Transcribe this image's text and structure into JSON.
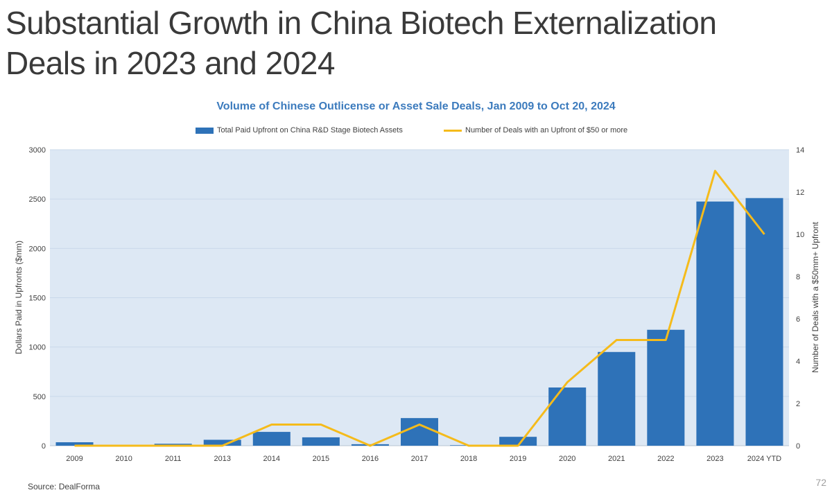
{
  "slide": {
    "title": "Substantial Growth in China Biotech Externalization Deals in 2023 and 2024",
    "source": "Source: DealForma",
    "page_number": "72"
  },
  "colors": {
    "bar": "#2e72b8",
    "line": "#f5bb1b",
    "plot_background": "#dde8f4",
    "title": "#3c7bbd"
  },
  "chart_data": {
    "type": "bar",
    "title": "Volume of Chinese  Outlicense or Asset Sale Deals, Jan 2009 to Oct 20, 2024",
    "categories": [
      "2009",
      "2010",
      "2011",
      "2013",
      "2014",
      "2015",
      "2016",
      "2017",
      "2018",
      "2019",
      "2020",
      "2021",
      "2022",
      "2023",
      "2024 YTD"
    ],
    "series": [
      {
        "name": "Total Paid Upfront on China R&D Stage Biotech Assets",
        "type": "bar",
        "axis": "left",
        "values": [
          35,
          0,
          20,
          60,
          140,
          85,
          15,
          280,
          5,
          90,
          590,
          950,
          1175,
          2475,
          2510
        ]
      },
      {
        "name": "Number of Deals with an Upfront of $50 or more",
        "type": "line",
        "axis": "right",
        "values": [
          0,
          0,
          0,
          0,
          1,
          1,
          0,
          1,
          0,
          0,
          3,
          5,
          5,
          13,
          10
        ]
      }
    ],
    "ylabel": "Dollars Paid in Upfronts ($mm)",
    "ylim": [
      0,
      3000
    ],
    "yticks": [
      0,
      500,
      1000,
      1500,
      2000,
      2500,
      3000
    ],
    "y2label": "Number of Deals with a $50mm+ Upfront",
    "y2lim": [
      0,
      14
    ],
    "y2ticks": [
      0,
      2,
      4,
      6,
      8,
      10,
      12,
      14
    ],
    "grid": true,
    "legend": "top-center"
  }
}
